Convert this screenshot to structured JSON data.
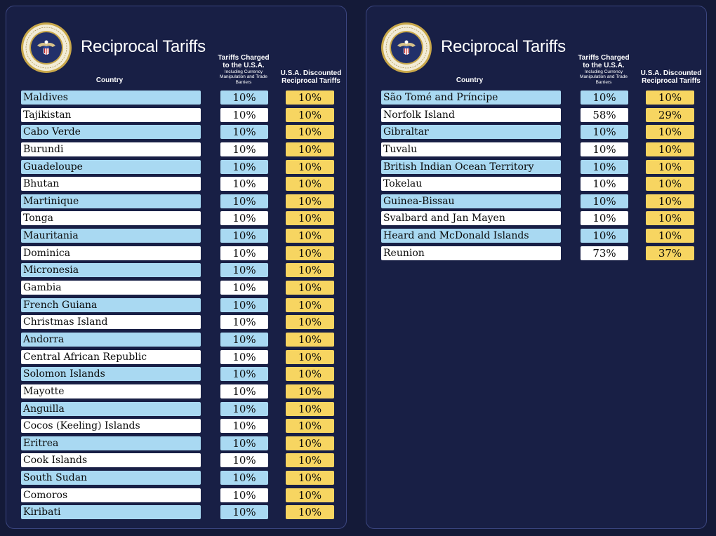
{
  "colors": {
    "background": "#181f45",
    "blue_row": "#a9d9f2",
    "white_row": "#ffffff",
    "gold": "#f7d561"
  },
  "left": {
    "title": "Reciprocal Tariffs",
    "headers": {
      "country": "Country",
      "charged": "Tariffs Charged to the U.S.A.",
      "charged_sub": "Including Currency Manipulation and Trade Barriers",
      "reciprocal": "U.S.A. Discounted Reciprocal Tariffs"
    },
    "rows": [
      {
        "country": "Maldives",
        "charged": "10%",
        "reciprocal": "10%"
      },
      {
        "country": "Tajikistan",
        "charged": "10%",
        "reciprocal": "10%"
      },
      {
        "country": "Cabo Verde",
        "charged": "10%",
        "reciprocal": "10%"
      },
      {
        "country": "Burundi",
        "charged": "10%",
        "reciprocal": "10%"
      },
      {
        "country": "Guadeloupe",
        "charged": "10%",
        "reciprocal": "10%"
      },
      {
        "country": "Bhutan",
        "charged": "10%",
        "reciprocal": "10%"
      },
      {
        "country": "Martinique",
        "charged": "10%",
        "reciprocal": "10%"
      },
      {
        "country": "Tonga",
        "charged": "10%",
        "reciprocal": "10%"
      },
      {
        "country": "Mauritania",
        "charged": "10%",
        "reciprocal": "10%"
      },
      {
        "country": "Dominica",
        "charged": "10%",
        "reciprocal": "10%"
      },
      {
        "country": "Micronesia",
        "charged": "10%",
        "reciprocal": "10%"
      },
      {
        "country": "Gambia",
        "charged": "10%",
        "reciprocal": "10%"
      },
      {
        "country": "French Guiana",
        "charged": "10%",
        "reciprocal": "10%"
      },
      {
        "country": "Christmas Island",
        "charged": "10%",
        "reciprocal": "10%"
      },
      {
        "country": "Andorra",
        "charged": "10%",
        "reciprocal": "10%"
      },
      {
        "country": "Central African Republic",
        "charged": "10%",
        "reciprocal": "10%"
      },
      {
        "country": "Solomon Islands",
        "charged": "10%",
        "reciprocal": "10%"
      },
      {
        "country": "Mayotte",
        "charged": "10%",
        "reciprocal": "10%"
      },
      {
        "country": "Anguilla",
        "charged": "10%",
        "reciprocal": "10%"
      },
      {
        "country": "Cocos (Keeling) Islands",
        "charged": "10%",
        "reciprocal": "10%"
      },
      {
        "country": "Eritrea",
        "charged": "10%",
        "reciprocal": "10%"
      },
      {
        "country": "Cook Islands",
        "charged": "10%",
        "reciprocal": "10%"
      },
      {
        "country": "South Sudan",
        "charged": "10%",
        "reciprocal": "10%"
      },
      {
        "country": "Comoros",
        "charged": "10%",
        "reciprocal": "10%"
      },
      {
        "country": "Kiribati",
        "charged": "10%",
        "reciprocal": "10%"
      }
    ]
  },
  "right": {
    "title": "Reciprocal Tariffs",
    "headers": {
      "country": "Country",
      "charged": "Tariffs Charged to the U.S.A.",
      "charged_sub": "Including Currency Manipulation and Trade Barriers",
      "reciprocal": "U.S.A. Discounted Reciprocal Tariffs"
    },
    "rows": [
      {
        "country": "São Tomé and Príncipe",
        "charged": "10%",
        "reciprocal": "10%"
      },
      {
        "country": "Norfolk Island",
        "charged": "58%",
        "reciprocal": "29%"
      },
      {
        "country": "Gibraltar",
        "charged": "10%",
        "reciprocal": "10%"
      },
      {
        "country": "Tuvalu",
        "charged": "10%",
        "reciprocal": "10%"
      },
      {
        "country": "British Indian Ocean Territory",
        "charged": "10%",
        "reciprocal": "10%"
      },
      {
        "country": "Tokelau",
        "charged": "10%",
        "reciprocal": "10%"
      },
      {
        "country": "Guinea-Bissau",
        "charged": "10%",
        "reciprocal": "10%"
      },
      {
        "country": "Svalbard and Jan Mayen",
        "charged": "10%",
        "reciprocal": "10%"
      },
      {
        "country": "Heard and McDonald Islands",
        "charged": "10%",
        "reciprocal": "10%"
      },
      {
        "country": "Reunion",
        "charged": "73%",
        "reciprocal": "37%"
      }
    ]
  }
}
